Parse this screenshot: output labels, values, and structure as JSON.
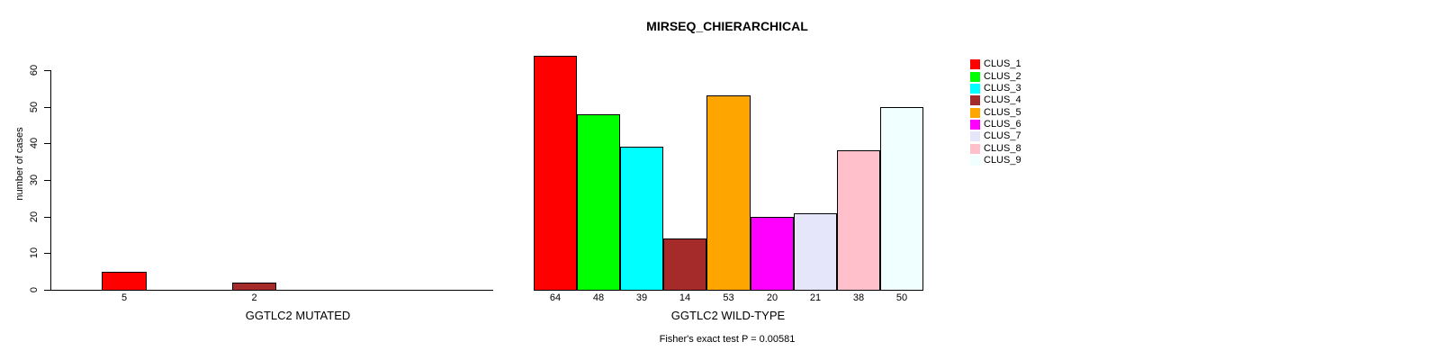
{
  "chart_data": {
    "type": "bar",
    "title": "MIRSEQ_CHIERARCHICAL",
    "ylabel": "number of cases",
    "ylim": [
      0,
      60
    ],
    "yticks": [
      0,
      10,
      20,
      30,
      40,
      50,
      60
    ],
    "grid": false,
    "legend_position": "right",
    "footnote": "Fisher's exact test P = 0.00581",
    "clusters": [
      {
        "label": "CLUS_1",
        "color": "#FF0000"
      },
      {
        "label": "CLUS_2",
        "color": "#00FF00"
      },
      {
        "label": "CLUS_3",
        "color": "#00FFFF"
      },
      {
        "label": "CLUS_4",
        "color": "#A52A2A"
      },
      {
        "label": "CLUS_5",
        "color": "#FFA500"
      },
      {
        "label": "CLUS_6",
        "color": "#FF00FF"
      },
      {
        "label": "CLUS_7",
        "color": "#E6E6FA"
      },
      {
        "label": "CLUS_8",
        "color": "#FFC0CB"
      },
      {
        "label": "CLUS_9",
        "color": "#F0FFFF"
      }
    ],
    "panels": [
      {
        "xlabel": "GGTLC2 MUTATED",
        "bars": [
          {
            "cluster": "CLUS_1",
            "value": 5,
            "color": "#FF0000"
          },
          {
            "cluster": "CLUS_4",
            "value": 2,
            "color": "#A52A2A"
          }
        ]
      },
      {
        "xlabel": "GGTLC2 WILD-TYPE",
        "bars": [
          {
            "cluster": "CLUS_1",
            "value": 64,
            "color": "#FF0000"
          },
          {
            "cluster": "CLUS_2",
            "value": 48,
            "color": "#00FF00"
          },
          {
            "cluster": "CLUS_3",
            "value": 39,
            "color": "#00FFFF"
          },
          {
            "cluster": "CLUS_4",
            "value": 14,
            "color": "#A52A2A"
          },
          {
            "cluster": "CLUS_5",
            "value": 53,
            "color": "#FFA500"
          },
          {
            "cluster": "CLUS_6",
            "value": 20,
            "color": "#FF00FF"
          },
          {
            "cluster": "CLUS_7",
            "value": 21,
            "color": "#E6E6FA"
          },
          {
            "cluster": "CLUS_8",
            "value": 38,
            "color": "#FFC0CB"
          },
          {
            "cluster": "CLUS_9",
            "value": 50,
            "color": "#F0FFFF"
          }
        ]
      }
    ]
  }
}
